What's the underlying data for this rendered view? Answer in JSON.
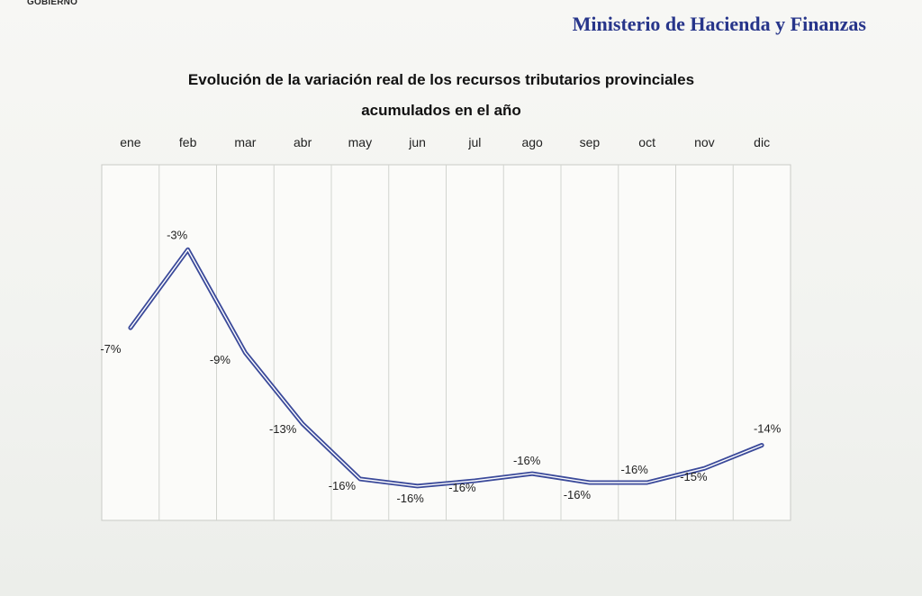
{
  "header": {
    "corner_label": "GOBIERNO",
    "ministry": "Ministerio de Hacienda y Finanzas"
  },
  "chart_data": {
    "type": "line",
    "title_line1": "Evolución de la variación real de los recursos tributarios provinciales",
    "title_line2": "acumulados en el año",
    "categories": [
      "ene",
      "feb",
      "mar",
      "abr",
      "may",
      "jun",
      "jul",
      "ago",
      "sep",
      "oct",
      "nov",
      "dic"
    ],
    "values": [
      -7.4,
      -3.0,
      -8.8,
      -12.8,
      -15.9,
      -16.3,
      -16.0,
      -15.6,
      -16.1,
      -16.1,
      -15.3,
      -14.0
    ],
    "labels": [
      "-7%",
      "-3%",
      "-9%",
      "-13%",
      "-16%",
      "-16%",
      "-16%",
      "-16%",
      "-16%",
      "-16%",
      "-15%",
      "-14%"
    ],
    "ylim": [
      -20,
      0
    ],
    "grid": "vertical",
    "line_color": "#3b4a9a"
  }
}
